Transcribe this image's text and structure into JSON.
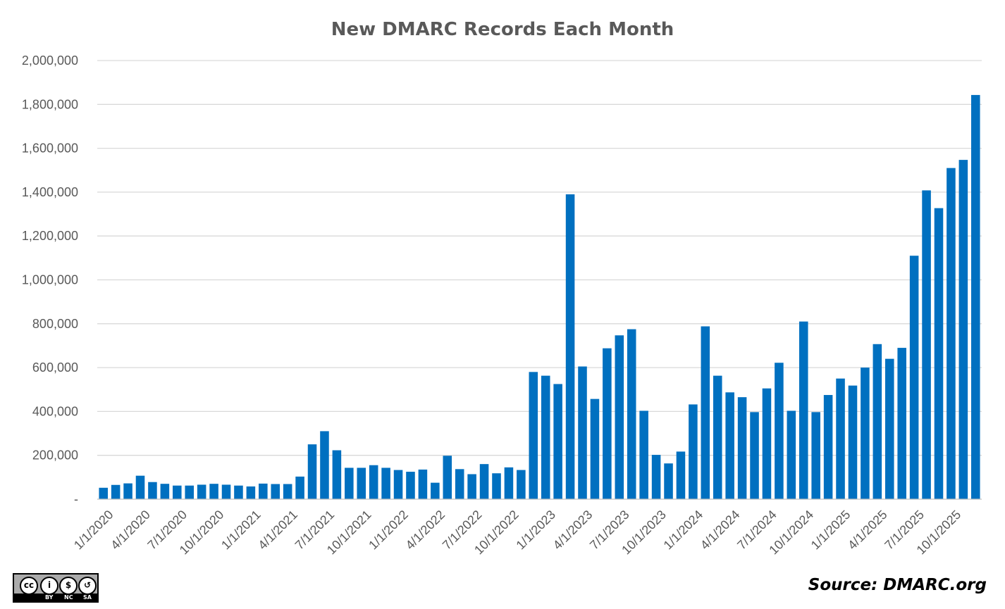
{
  "chart_data": {
    "type": "bar",
    "title": "New DMARC Records Each Month",
    "xlabel": "",
    "ylabel": "",
    "ylim": [
      0,
      2000000
    ],
    "yticks": [
      0,
      200000,
      400000,
      600000,
      800000,
      1000000,
      1200000,
      1400000,
      1600000,
      1800000,
      2000000
    ],
    "ytick_labels": [
      "-",
      "200,000",
      "400,000",
      "600,000",
      "800,000",
      "1,000,000",
      "1,200,000",
      "1,400,000",
      "1,600,000",
      "1,800,000",
      "2,000,000"
    ],
    "grid": true,
    "legend": "none",
    "bar_color": "#0070C0",
    "categories": [
      "1/1/2020",
      "2/1/2020",
      "3/1/2020",
      "4/1/2020",
      "5/1/2020",
      "6/1/2020",
      "7/1/2020",
      "8/1/2020",
      "9/1/2020",
      "10/1/2020",
      "11/1/2020",
      "12/1/2020",
      "1/1/2021",
      "2/1/2021",
      "3/1/2021",
      "4/1/2021",
      "5/1/2021",
      "6/1/2021",
      "7/1/2021",
      "8/1/2021",
      "9/1/2021",
      "10/1/2021",
      "11/1/2021",
      "12/1/2021",
      "1/1/2022",
      "2/1/2022",
      "3/1/2022",
      "4/1/2022",
      "5/1/2022",
      "6/1/2022",
      "7/1/2022",
      "8/1/2022",
      "9/1/2022",
      "10/1/2022",
      "11/1/2022",
      "12/1/2022",
      "1/1/2023",
      "2/1/2023",
      "3/1/2023",
      "4/1/2023",
      "5/1/2023",
      "6/1/2023",
      "7/1/2023",
      "8/1/2023",
      "9/1/2023",
      "10/1/2023",
      "11/1/2023",
      "12/1/2023",
      "1/1/2024",
      "2/1/2024",
      "3/1/2024",
      "4/1/2024",
      "5/1/2024",
      "6/1/2024",
      "7/1/2024",
      "8/1/2024",
      "9/1/2024",
      "10/1/2024",
      "11/1/2024",
      "12/1/2024",
      "1/1/2025",
      "2/1/2025",
      "3/1/2025",
      "4/1/2025",
      "5/1/2025",
      "6/1/2025",
      "7/1/2025",
      "8/1/2025",
      "9/1/2025",
      "10/1/2025",
      "11/1/2025",
      "12/1/2025"
    ],
    "x_tick_labels": [
      "1/1/2020",
      "4/1/2020",
      "7/1/2020",
      "10/1/2020",
      "1/1/2021",
      "4/1/2021",
      "7/1/2021",
      "10/1/2021",
      "1/1/2022",
      "4/1/2022",
      "7/1/2022",
      "10/1/2022",
      "1/1/2023",
      "4/1/2023",
      "7/1/2023",
      "10/1/2023",
      "1/1/2024",
      "4/1/2024",
      "7/1/2024",
      "10/1/2024",
      "1/1/2025",
      "4/1/2025",
      "7/1/2025",
      "10/1/2025"
    ],
    "values": [
      52000,
      65000,
      72000,
      107000,
      78000,
      70000,
      62000,
      62000,
      66000,
      70000,
      66000,
      62000,
      58000,
      71000,
      69000,
      69000,
      103000,
      250000,
      310000,
      223000,
      143000,
      143000,
      155000,
      143000,
      133000,
      125000,
      135000,
      75000,
      198000,
      137000,
      114000,
      160000,
      118000,
      145000,
      133000,
      580000,
      563000,
      525000,
      1390000,
      605000,
      457000,
      688000,
      747000,
      775000,
      403000,
      202000,
      163000,
      217000,
      432000,
      788000,
      563000,
      487000,
      465000,
      397000,
      505000,
      622000,
      403000,
      810000,
      397000,
      475000,
      550000,
      518000,
      600000,
      707000,
      640000,
      690000,
      1110000,
      1408000,
      1327000,
      1510000,
      1547000,
      1843000
    ]
  },
  "source_label": "Source: DMARC.org",
  "license_badge": {
    "icons": [
      "cc-icon",
      "by-icon",
      "nc-icon",
      "sa-icon"
    ],
    "glyphs": [
      "cc",
      "i",
      "$",
      "↺"
    ],
    "labels": [
      "BY",
      "NC",
      "SA"
    ]
  }
}
